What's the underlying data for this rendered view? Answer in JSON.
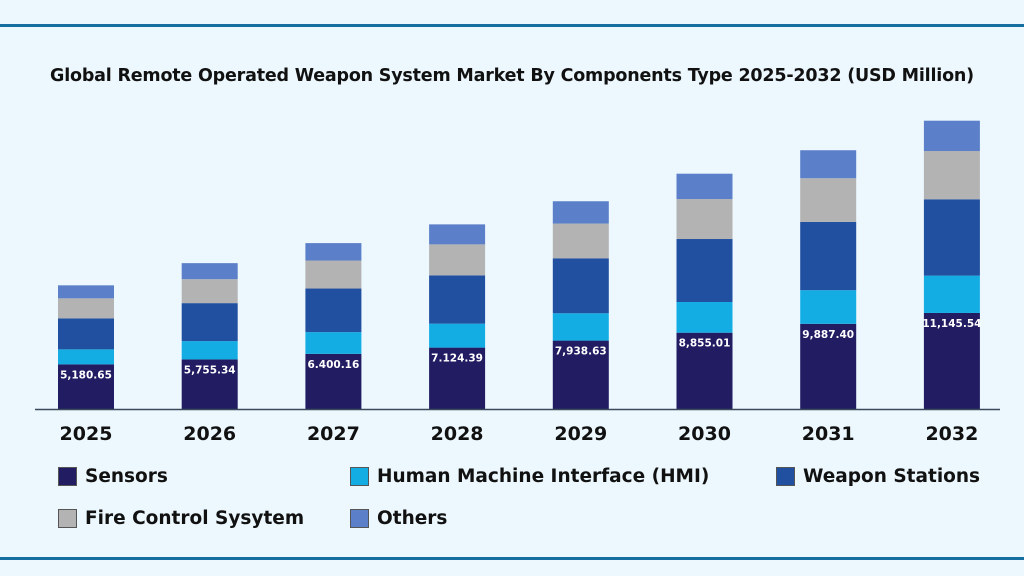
{
  "chart_data": {
    "type": "bar",
    "stacked": true,
    "title": "Global Remote Operated Weapon System Market By Components Type 2025-2032 (USD Million)",
    "xlabel": "",
    "ylabel": "",
    "ylim": [
      0,
      34000
    ],
    "grid": false,
    "legend_position": "bottom",
    "categories": [
      "2025",
      "2026",
      "2027",
      "2028",
      "2029",
      "2030",
      "2031",
      "2032"
    ],
    "series": [
      {
        "name": "Sensors",
        "color": "#221c63",
        "labeled": true,
        "values": [
          5180.65,
          5755.34,
          6400.16,
          7124.39,
          7938.63,
          8855.01,
          9887.4,
          11145.54
        ],
        "labels": [
          "5,180.65",
          "5,755.34",
          "6.400.16",
          "7.124.39",
          "7,938.63",
          "8,855.01",
          "9,887.40",
          "11,145.54"
        ]
      },
      {
        "name": "Human Machine Interface (HMI)",
        "color": "#13ade4",
        "values": [
          1740,
          2120,
          2520,
          2780,
          3170,
          3560,
          3900,
          4330
        ]
      },
      {
        "name": "Weapon Stations",
        "color": "#2150a0",
        "values": [
          3600,
          4410,
          5060,
          5600,
          6380,
          7310,
          7930,
          8860
        ]
      },
      {
        "name": "Fire Control Sysytem",
        "color": "#b3b3b3",
        "values": [
          2320,
          2780,
          3250,
          3600,
          4030,
          4640,
          5060,
          5600
        ]
      },
      {
        "name": "Others",
        "color": "#5b7fc8",
        "values": [
          1510,
          1860,
          2020,
          2320,
          2590,
          2940,
          3250,
          3520
        ]
      }
    ]
  },
  "frame_color": "#176ea0"
}
